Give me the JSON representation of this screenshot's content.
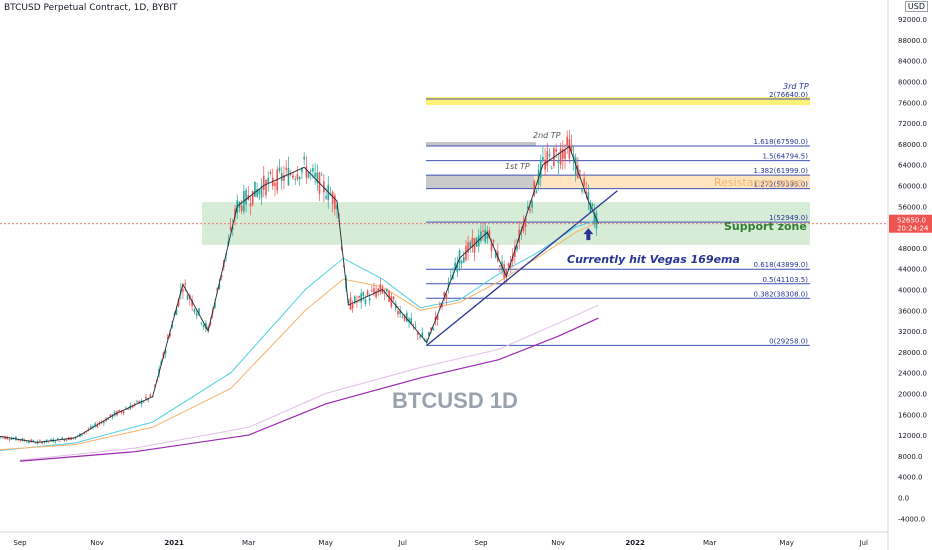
{
  "chart_data": {
    "type": "candlestick",
    "title": "BTCUSD Perpetual Contract, 1D, BYBIT",
    "watermark": "BTCUSD 1D",
    "currency": "USD",
    "price_axis": {
      "ticks": [
        92000,
        88000,
        84000,
        80000,
        76000,
        72000,
        68000,
        64000,
        60000,
        56000,
        52000,
        48000,
        44000,
        40000,
        36000,
        32000,
        28000,
        24000,
        20000,
        16000,
        12000,
        8000,
        4000,
        0,
        -4000
      ],
      "ylim": [
        -4000,
        92000
      ]
    },
    "time_axis": {
      "labels": [
        "Sep",
        "Nov",
        "2021",
        "Mar",
        "May",
        "Jul",
        "Sep",
        "Nov",
        "2022",
        "Mar",
        "May",
        "Jul"
      ],
      "bold_labels": [
        "2021",
        "2022"
      ]
    },
    "last_price": {
      "value": "52650.0",
      "countdown": "20:24:24",
      "color": "#ef5350"
    },
    "fib_levels": [
      {
        "label": "2(76640.0)",
        "value": 76640
      },
      {
        "label": "1.618(67590.0)",
        "value": 67590
      },
      {
        "label": "1.5(64794.5)",
        "value": 64794.5
      },
      {
        "label": "1.382(61999.0)",
        "value": 61999
      },
      {
        "label": "1.272(59393.0)",
        "value": 59393
      },
      {
        "label": "1(52949.0)",
        "value": 52949
      },
      {
        "label": "0.618(43899.0)",
        "value": 43899
      },
      {
        "label": "0.5(41103.5)",
        "value": 41103.5
      },
      {
        "label": "0.382(38308.0)",
        "value": 38308
      },
      {
        "label": "0(29258.0)",
        "value": 29258
      }
    ],
    "annotations": {
      "third_tp": "3rd TP",
      "second_tp": "2nd TP",
      "first_tp": "1st TP",
      "resistance": "Resistance zone",
      "support": "Support zone",
      "note": "Currently hit Vegas 169ema"
    },
    "colors": {
      "up": "#26a69a",
      "down": "#ef5350",
      "fib_line": "#3f51b5",
      "ema_fast": "#1f2937",
      "ema_cyan": "#4dd0e1",
      "ema_orange": "#f6b26b",
      "ema_pink": "#e1bee7",
      "ema_purple": "#9c27b0",
      "support_fill": "#c8e6c9",
      "resistance_fill": "#ffe0b2",
      "third_tp_fill": "#fff176",
      "annotation_text": "#283593",
      "support_text": "#2e7d32",
      "resistance_text": "#f6b26b",
      "trendline": "#283593"
    },
    "series": [
      {
        "name": "close",
        "dates": [
          "2020-08-15",
          "2020-09-15",
          "2020-10-15",
          "2020-11-15",
          "2020-12-15",
          "2021-01-08",
          "2021-01-28",
          "2021-02-20",
          "2021-03-13",
          "2021-04-14",
          "2021-05-10",
          "2021-05-19",
          "2021-06-15",
          "2021-07-20",
          "2021-08-15",
          "2021-09-06",
          "2021-09-21",
          "2021-10-20",
          "2021-11-10",
          "2021-11-25",
          "2021-12-03"
        ],
        "values": [
          11800,
          10600,
          11500,
          16000,
          19400,
          41000,
          32000,
          56000,
          60000,
          63500,
          57000,
          37000,
          40000,
          29800,
          46000,
          51000,
          42500,
          64000,
          67500,
          57000,
          52650
        ]
      }
    ]
  }
}
